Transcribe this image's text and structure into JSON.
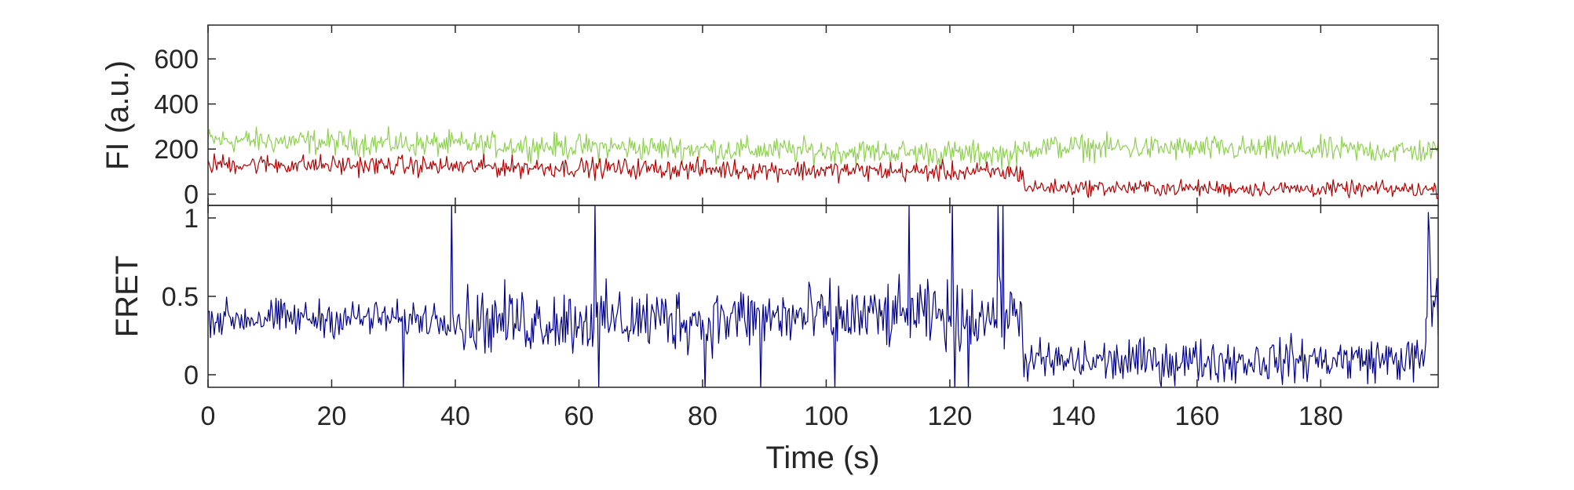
{
  "chart_data": [
    {
      "type": "line",
      "ylabel": "FI (a.u.)",
      "xlabel": "",
      "xlim": [
        0,
        199
      ],
      "ylim": [
        -50,
        750
      ],
      "yticks": [
        0,
        200,
        400,
        600
      ],
      "ytick_labels": [
        "0",
        "200",
        "400",
        "600"
      ],
      "grid": false,
      "series": [
        {
          "color": "#8ed14f",
          "step": 0.2,
          "segments": [
            {
              "x0": 0,
              "x1": 132,
              "mean_start": 240,
              "mean_end": 175,
              "noise": 48
            },
            {
              "x0": 132,
              "x1": 199,
              "mean_start": 210,
              "mean_end": 190,
              "noise": 48
            }
          ]
        },
        {
          "color": "#b40000",
          "step": 0.2,
          "segments": [
            {
              "x0": 0,
              "x1": 132,
              "mean_start": 135,
              "mean_end": 95,
              "noise": 38
            },
            {
              "x0": 132,
              "x1": 199,
              "mean_start": 30,
              "mean_end": 20,
              "noise": 30
            }
          ]
        }
      ]
    },
    {
      "type": "line",
      "ylabel": "FRET",
      "xlabel": "Time (s)",
      "xlim": [
        0,
        199
      ],
      "ylim": [
        -0.08,
        1.08
      ],
      "yticks": [
        0,
        0.5,
        1
      ],
      "ytick_labels": [
        "0",
        "0.5",
        "1"
      ],
      "xticks": [
        0,
        20,
        40,
        60,
        80,
        100,
        120,
        140,
        160,
        180
      ],
      "xtick_labels": [
        "0",
        "20",
        "40",
        "60",
        "80",
        "100",
        "120",
        "140",
        "160",
        "180"
      ],
      "grid": false,
      "series": [
        {
          "color": "#00008b",
          "step": 0.2,
          "segments": [
            {
              "x0": 0,
              "x1": 40,
              "mean_start": 0.36,
              "mean_end": 0.36,
              "noise": 0.1
            },
            {
              "x0": 40,
              "x1": 132,
              "mean_start": 0.34,
              "mean_end": 0.38,
              "noise": 0.18
            },
            {
              "x0": 132,
              "x1": 197,
              "mean_start": 0.08,
              "mean_end": 0.1,
              "noise": 0.12
            },
            {
              "x0": 197,
              "x1": 199,
              "mean_start": 0.5,
              "mean_end": 0.5,
              "noise": 0.6
            }
          ],
          "spikes": [
            {
              "x": 39.5,
              "y": 1.1
            },
            {
              "x": 62.7,
              "y": 1.1
            },
            {
              "x": 113.5,
              "y": 1.1
            },
            {
              "x": 120.5,
              "y": 1.1
            },
            {
              "x": 127.8,
              "y": 1.1
            },
            {
              "x": 128.6,
              "y": 1.1
            },
            {
              "x": 31.5,
              "y": -0.1
            },
            {
              "x": 63.2,
              "y": -0.1
            },
            {
              "x": 80.5,
              "y": -0.1
            },
            {
              "x": 89.5,
              "y": -0.1
            },
            {
              "x": 101.5,
              "y": -0.1
            },
            {
              "x": 120.8,
              "y": -0.1
            },
            {
              "x": 123.0,
              "y": -0.1
            }
          ]
        }
      ]
    }
  ]
}
